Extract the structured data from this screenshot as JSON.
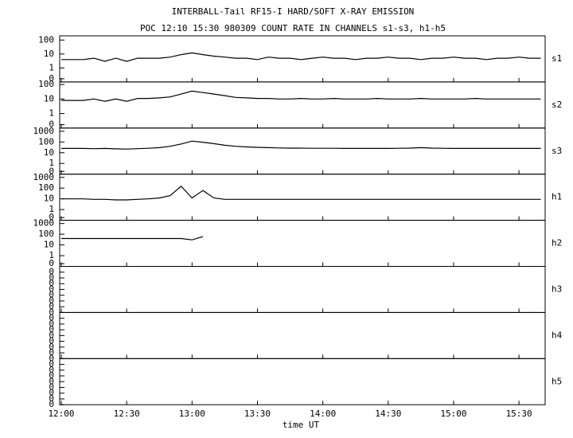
{
  "chart_data": {
    "type": "line",
    "title": "INTERBALL-Tail RF15-I HARD/SOFT X-RAY EMISSION",
    "subtitle": "POC 12:10 15:30 980309  COUNT RATE IN CHANNELS s1-s3, h1-h5",
    "x_label": "time UT",
    "color": "#000000",
    "x": [
      "12:00",
      "12:05",
      "12:10",
      "12:15",
      "12:20",
      "12:25",
      "12:30",
      "12:35",
      "12:40",
      "12:45",
      "12:50",
      "12:55",
      "13:00",
      "13:05",
      "13:10",
      "13:15",
      "13:20",
      "13:25",
      "13:30",
      "13:35",
      "13:40",
      "13:45",
      "13:50",
      "13:55",
      "14:00",
      "14:05",
      "14:10",
      "14:15",
      "14:20",
      "14:25",
      "14:30",
      "14:35",
      "14:40",
      "14:45",
      "14:50",
      "14:55",
      "15:00",
      "15:05",
      "15:10",
      "15:15",
      "15:20",
      "15:25",
      "15:30",
      "15:35",
      "15:40"
    ],
    "xlim": [
      "12:00",
      "15:42"
    ],
    "xticks": [
      "12:00",
      "12:30",
      "13:00",
      "13:30",
      "14:00",
      "14:30",
      "15:00",
      "15:30"
    ],
    "panels": [
      {
        "name": "s1",
        "log": true,
        "ylim": [
          0.1,
          200
        ],
        "yticks": [
          100,
          10,
          1,
          {
            "value": 0.17,
            "label": "0"
          }
        ],
        "values": [
          4,
          4,
          4,
          5,
          3,
          5,
          3,
          5,
          5,
          5,
          6,
          9,
          12,
          9,
          7,
          6,
          5,
          5,
          4,
          6,
          5,
          5,
          4,
          5,
          6,
          5,
          5,
          4,
          5,
          5,
          6,
          5,
          5,
          4,
          5,
          5,
          6,
          5,
          5,
          4,
          5,
          5,
          6,
          5,
          5
        ]
      },
      {
        "name": "s2",
        "log": true,
        "ylim": [
          0.1,
          150
        ],
        "yticks": [
          100,
          10,
          1,
          {
            "value": 0.17,
            "label": "0"
          }
        ],
        "values": [
          8,
          8,
          8,
          10,
          7,
          10,
          7,
          11,
          11,
          12,
          14,
          22,
          35,
          28,
          22,
          17,
          13,
          12,
          11,
          11,
          10,
          10,
          11,
          10,
          10,
          11,
          10,
          10,
          10,
          11,
          10,
          10,
          10,
          11,
          10,
          10,
          10,
          10,
          11,
          10,
          10,
          10,
          10,
          10,
          10
        ]
      },
      {
        "name": "s3",
        "log": true,
        "ylim": [
          0.1,
          2000
        ],
        "yticks": [
          1000,
          100,
          10,
          1,
          {
            "value": 0.18,
            "label": "0"
          }
        ],
        "values": [
          25,
          25,
          25,
          24,
          25,
          23,
          22,
          24,
          26,
          30,
          40,
          65,
          120,
          95,
          70,
          50,
          40,
          35,
          32,
          30,
          28,
          27,
          27,
          26,
          26,
          26,
          25,
          25,
          25,
          25,
          25,
          26,
          27,
          30,
          27,
          26,
          25,
          25,
          25,
          25,
          25,
          25,
          25,
          25,
          25
        ]
      },
      {
        "name": "h1",
        "log": true,
        "ylim": [
          0.1,
          2000
        ],
        "yticks": [
          1000,
          100,
          10,
          1,
          {
            "value": 0.18,
            "label": "0"
          }
        ],
        "values": [
          10,
          10,
          10,
          9,
          9,
          8,
          8,
          9,
          10,
          12,
          20,
          150,
          12,
          60,
          12,
          9,
          9,
          9,
          9,
          9,
          9,
          9,
          9,
          9,
          9,
          9,
          9,
          9,
          9,
          9,
          9,
          9,
          9,
          9,
          9,
          9,
          9,
          9,
          9,
          9,
          9,
          9,
          9,
          9,
          9
        ]
      },
      {
        "name": "h2",
        "log": true,
        "ylim": [
          0.1,
          2000
        ],
        "yticks": [
          1000,
          100,
          10,
          1,
          {
            "value": 0.18,
            "label": "0"
          }
        ],
        "values": [
          40,
          40,
          40,
          40,
          40,
          40,
          40,
          40,
          40,
          40,
          40,
          40,
          30,
          60,
          null,
          null,
          null,
          null,
          null,
          null,
          null,
          null,
          null,
          null,
          null,
          null,
          null,
          null,
          null,
          null,
          null,
          null,
          null,
          null,
          null,
          null,
          null,
          null,
          null,
          null,
          null,
          null,
          null,
          null,
          null
        ]
      },
      {
        "name": "h3",
        "log": false,
        "ylim": [
          0,
          0.4
        ],
        "yticks": [
          {
            "value": 0,
            "label": "0"
          },
          {
            "value": 0.05,
            "label": "0"
          },
          {
            "value": 0.1,
            "label": "0"
          },
          {
            "value": 0.15,
            "label": "0"
          },
          {
            "value": 0.2,
            "label": "0"
          },
          {
            "value": 0.25,
            "label": "0"
          },
          {
            "value": 0.3,
            "label": "0"
          },
          {
            "value": 0.35,
            "label": "0"
          }
        ]
      },
      {
        "name": "h4",
        "log": false,
        "ylim": [
          0,
          0.4
        ],
        "yticks": [
          {
            "value": 0,
            "label": "0"
          },
          {
            "value": 0.05,
            "label": "0"
          },
          {
            "value": 0.1,
            "label": "0"
          },
          {
            "value": 0.15,
            "label": "0"
          },
          {
            "value": 0.2,
            "label": "0"
          },
          {
            "value": 0.25,
            "label": "0"
          },
          {
            "value": 0.3,
            "label": "0"
          },
          {
            "value": 0.35,
            "label": "0"
          }
        ]
      },
      {
        "name": "h5",
        "log": false,
        "ylim": [
          0,
          0.4
        ],
        "yticks": [
          {
            "value": 0,
            "label": "0"
          },
          {
            "value": 0.05,
            "label": "0"
          },
          {
            "value": 0.1,
            "label": "0"
          },
          {
            "value": 0.15,
            "label": "0"
          },
          {
            "value": 0.2,
            "label": "0"
          },
          {
            "value": 0.25,
            "label": "0"
          },
          {
            "value": 0.3,
            "label": "0"
          },
          {
            "value": 0.35,
            "label": "0"
          }
        ]
      }
    ]
  }
}
